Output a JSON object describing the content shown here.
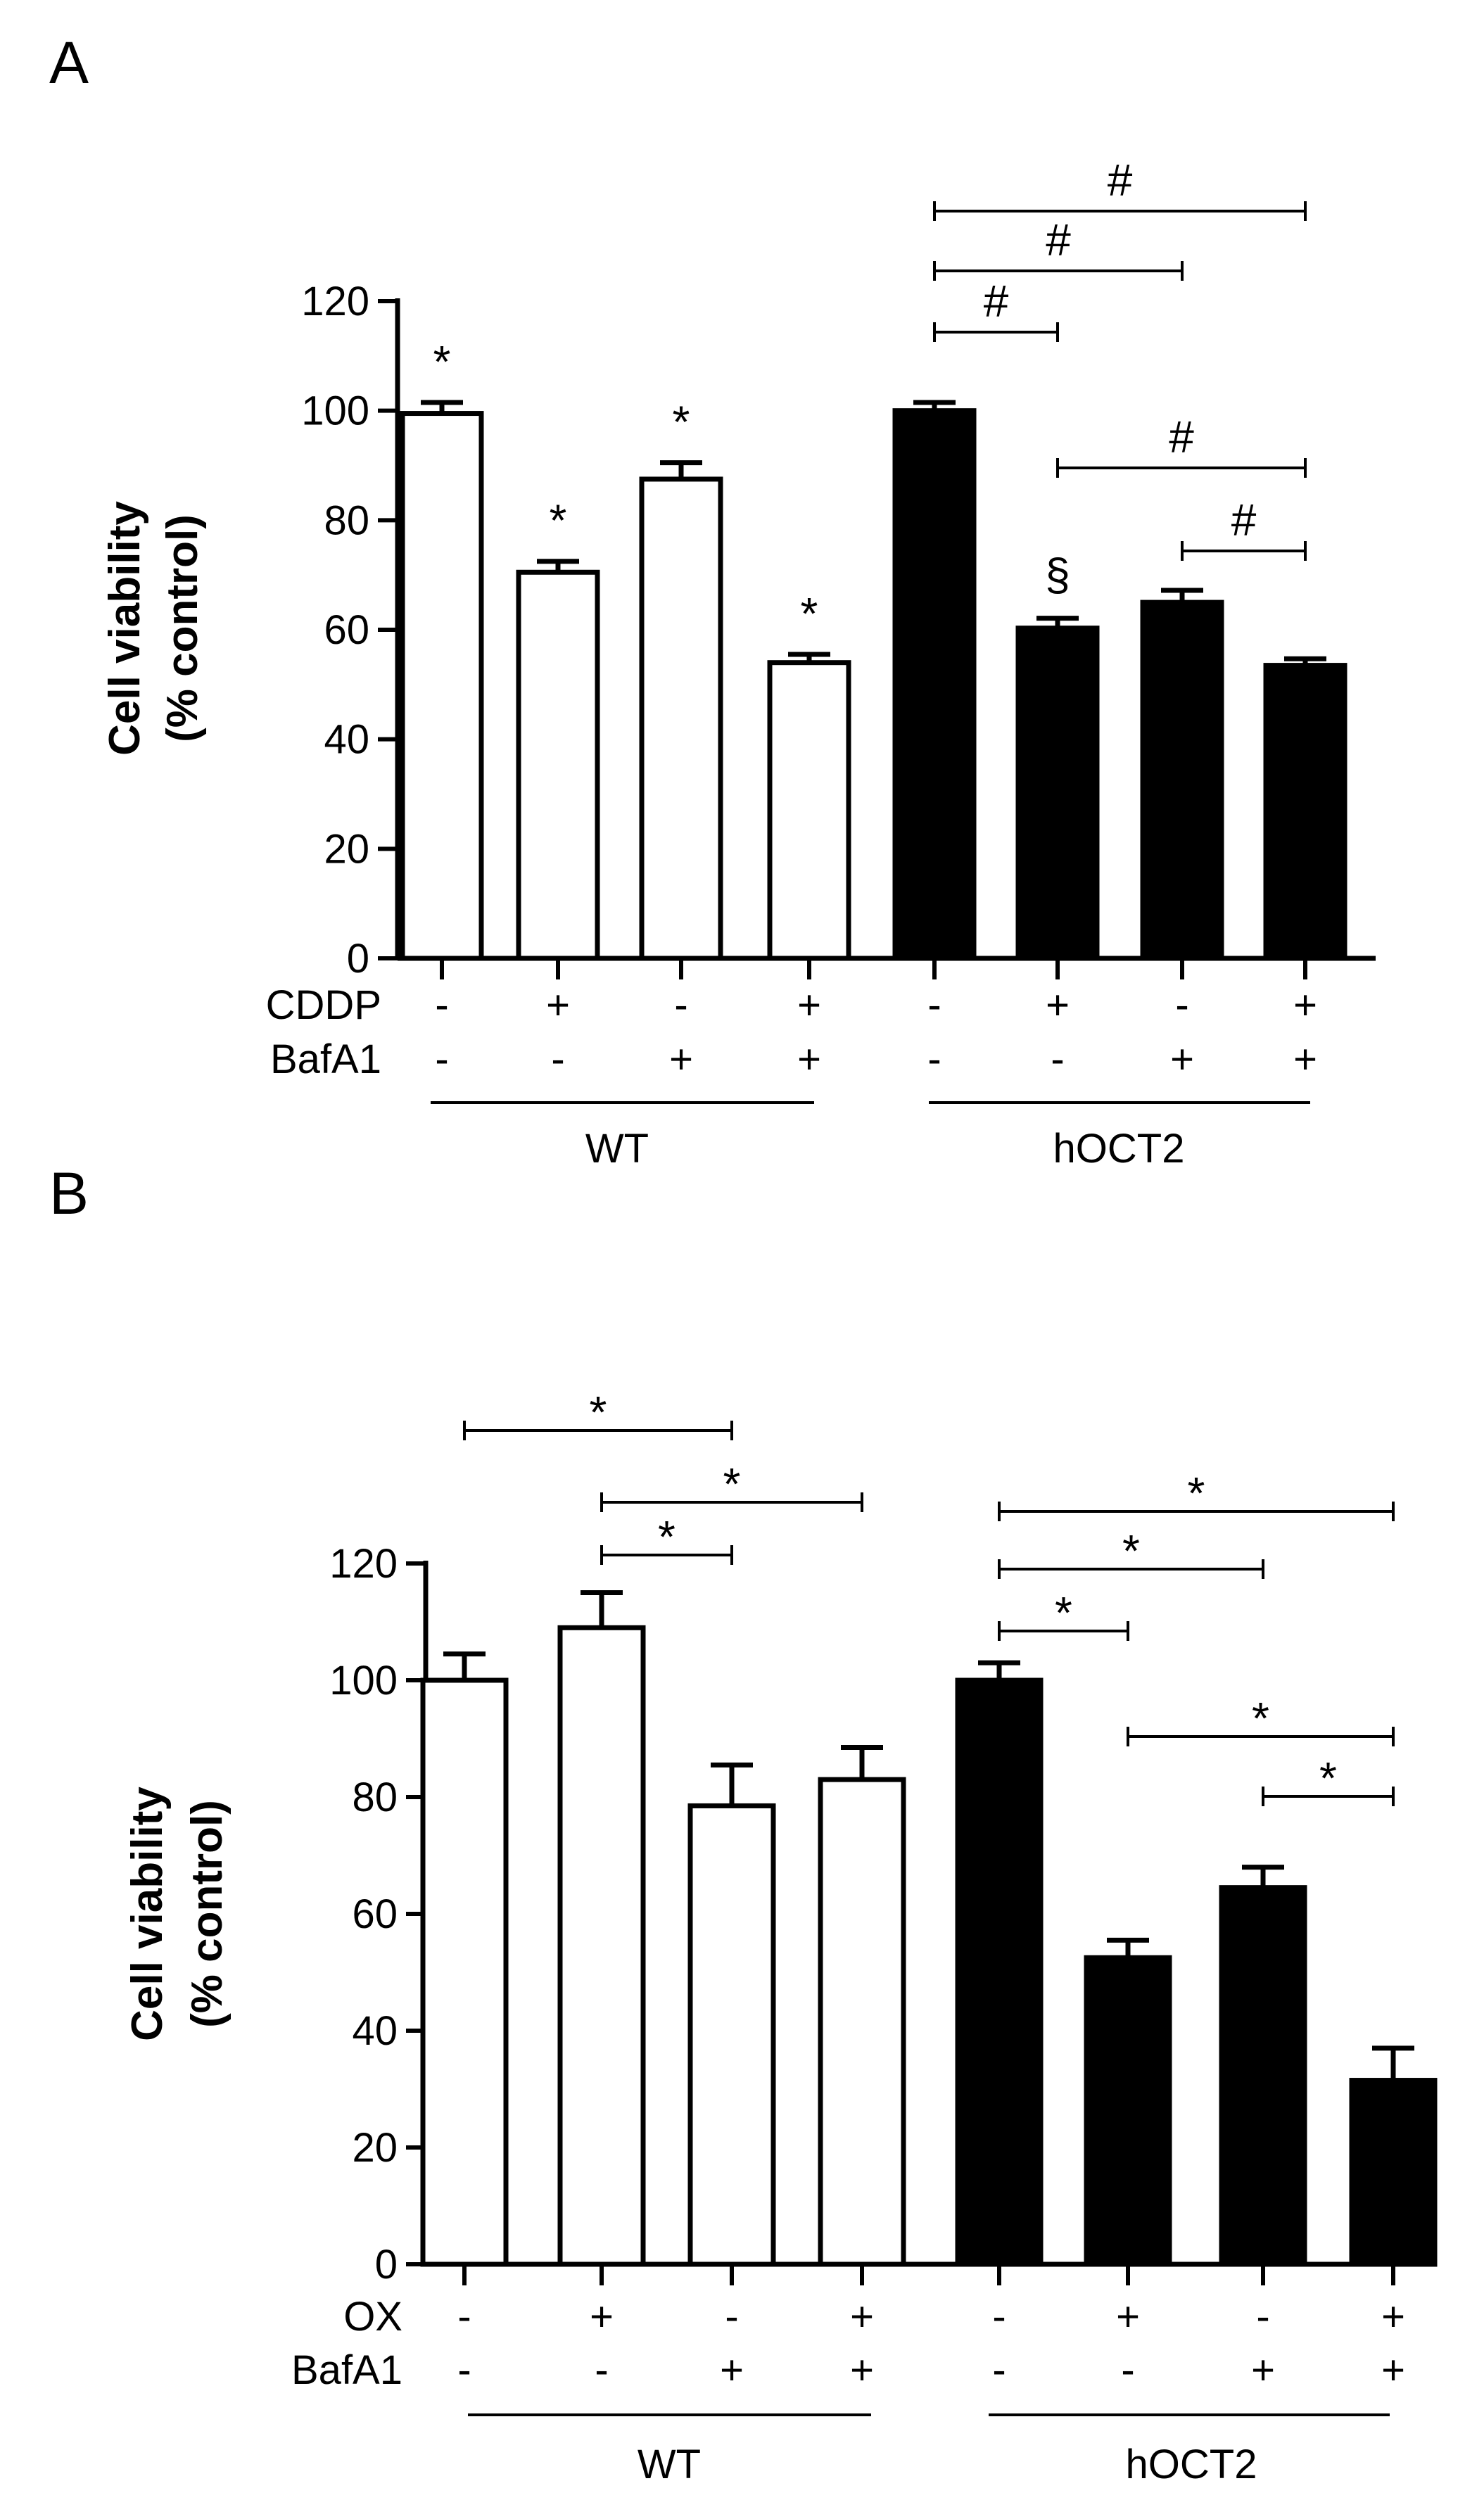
{
  "chart_data": [
    {
      "panel": "A",
      "type": "bar",
      "ylabel_line1": "Cell viability",
      "ylabel_line2": "(% control)",
      "ylim": [
        0,
        120
      ],
      "yticks": [
        "0",
        "20",
        "40",
        "60",
        "80",
        "100",
        "120"
      ],
      "bars": [
        {
          "group": "WT",
          "treatment_label": "CDDP",
          "treatment": "-",
          "bafa1": "-",
          "value": 99.5,
          "error": 2,
          "fill": "white",
          "annotation": "*"
        },
        {
          "group": "WT",
          "treatment_label": "CDDP",
          "treatment": "+",
          "bafa1": "-",
          "value": 70.5,
          "error": 2,
          "fill": "white",
          "annotation": "*"
        },
        {
          "group": "WT",
          "treatment_label": "CDDP",
          "treatment": "-",
          "bafa1": "+",
          "value": 87.5,
          "error": 3,
          "fill": "white",
          "annotation": "*"
        },
        {
          "group": "WT",
          "treatment_label": "CDDP",
          "treatment": "+",
          "bafa1": "+",
          "value": 54,
          "error": 1.5,
          "fill": "white",
          "annotation": "*"
        },
        {
          "group": "hOCT2",
          "treatment_label": "CDDP",
          "treatment": "-",
          "bafa1": "-",
          "value": 100,
          "error": 1.5,
          "fill": "black",
          "annotation": ""
        },
        {
          "group": "hOCT2",
          "treatment_label": "CDDP",
          "treatment": "+",
          "bafa1": "-",
          "value": 60.3,
          "error": 1.8,
          "fill": "black",
          "annotation": "§"
        },
        {
          "group": "hOCT2",
          "treatment_label": "CDDP",
          "treatment": "-",
          "bafa1": "+",
          "value": 65,
          "error": 2.2,
          "fill": "black",
          "annotation": ""
        },
        {
          "group": "hOCT2",
          "treatment_label": "CDDP",
          "treatment": "+",
          "bafa1": "+",
          "value": 53.5,
          "error": 1.2,
          "fill": "black",
          "annotation": ""
        }
      ],
      "brackets": [
        {
          "from_bar": 5,
          "to_bar": 8,
          "label": "#"
        },
        {
          "from_bar": 5,
          "to_bar": 7,
          "label": "#"
        },
        {
          "from_bar": 5,
          "to_bar": 6,
          "label": "#"
        },
        {
          "from_bar": 6,
          "to_bar": 8,
          "label": "#"
        },
        {
          "from_bar": 7,
          "to_bar": 8,
          "label": "#"
        }
      ],
      "row_labels": [
        "CDDP",
        "BafA1"
      ],
      "group_labels": [
        "WT",
        "hOCT2"
      ]
    },
    {
      "panel": "B",
      "type": "bar",
      "ylabel_line1": "Cell viability",
      "ylabel_line2": "(% control)",
      "ylim": [
        0,
        120
      ],
      "yticks": [
        "0",
        "20",
        "40",
        "60",
        "80",
        "100",
        "120"
      ],
      "bars": [
        {
          "group": "WT",
          "treatment_label": "OX",
          "treatment": "-",
          "bafa1": "-",
          "value": 100,
          "error": 4.5,
          "fill": "white",
          "annotation": ""
        },
        {
          "group": "WT",
          "treatment_label": "OX",
          "treatment": "+",
          "bafa1": "-",
          "value": 109,
          "error": 6,
          "fill": "white",
          "annotation": ""
        },
        {
          "group": "WT",
          "treatment_label": "OX",
          "treatment": "-",
          "bafa1": "+",
          "value": 78.5,
          "error": 7,
          "fill": "white",
          "annotation": ""
        },
        {
          "group": "WT",
          "treatment_label": "OX",
          "treatment": "+",
          "bafa1": "+",
          "value": 83,
          "error": 5.5,
          "fill": "white",
          "annotation": ""
        },
        {
          "group": "hOCT2",
          "treatment_label": "OX",
          "treatment": "-",
          "bafa1": "-",
          "value": 100,
          "error": 3,
          "fill": "black",
          "annotation": ""
        },
        {
          "group": "hOCT2",
          "treatment_label": "OX",
          "treatment": "+",
          "bafa1": "-",
          "value": 52.5,
          "error": 3,
          "fill": "black",
          "annotation": ""
        },
        {
          "group": "hOCT2",
          "treatment_label": "OX",
          "treatment": "-",
          "bafa1": "+",
          "value": 64.5,
          "error": 3.5,
          "fill": "black",
          "annotation": ""
        },
        {
          "group": "hOCT2",
          "treatment_label": "OX",
          "treatment": "+",
          "bafa1": "+",
          "value": 31.5,
          "error": 5.5,
          "fill": "black",
          "annotation": ""
        }
      ],
      "brackets": [
        {
          "from_bar": 1,
          "to_bar": 3,
          "label": "*"
        },
        {
          "from_bar": 2,
          "to_bar": 4,
          "label": "*"
        },
        {
          "from_bar": 2,
          "to_bar": 3,
          "label": "*"
        },
        {
          "from_bar": 5,
          "to_bar": 8,
          "label": "*"
        },
        {
          "from_bar": 5,
          "to_bar": 7,
          "label": "*"
        },
        {
          "from_bar": 5,
          "to_bar": 6,
          "label": "*"
        },
        {
          "from_bar": 6,
          "to_bar": 8,
          "label": "*"
        },
        {
          "from_bar": 7,
          "to_bar": 8,
          "label": "*"
        }
      ],
      "row_labels": [
        "OX",
        "BafA1"
      ],
      "group_labels": [
        "WT",
        "hOCT2"
      ]
    }
  ]
}
